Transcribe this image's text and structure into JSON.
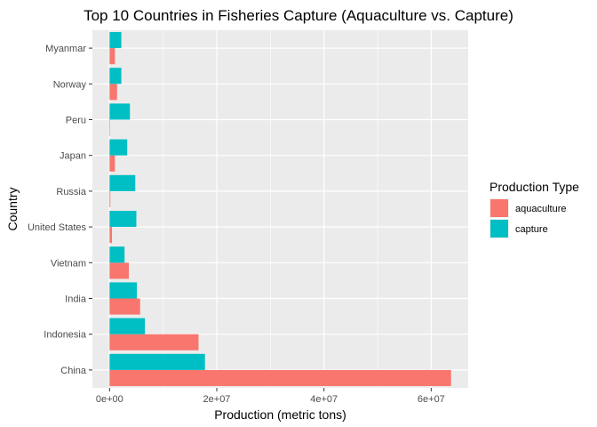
{
  "chart_data": {
    "type": "bar",
    "orientation": "horizontal",
    "title": "Top 10 Countries in Fisheries Capture (Aquaculture vs. Capture)",
    "xlabel": "Production (metric tons)",
    "ylabel": "Country",
    "categories": [
      "China",
      "Indonesia",
      "India",
      "Vietnam",
      "United States",
      "Russia",
      "Japan",
      "Peru",
      "Norway",
      "Myanmar"
    ],
    "series": [
      {
        "name": "aquaculture",
        "color": "#F8766D",
        "values": [
          63700000,
          16600000,
          5700000,
          3600000,
          450000,
          150000,
          1000000,
          100000,
          1400000,
          1000000
        ]
      },
      {
        "name": "capture",
        "color": "#00BFC4",
        "values": [
          17800000,
          6600000,
          5100000,
          2800000,
          5000000,
          4800000,
          3300000,
          3800000,
          2200000,
          2200000
        ]
      }
    ],
    "xlim": [
      -3200000,
      66900000
    ],
    "x_ticks": [
      0,
      20000000,
      40000000,
      60000000
    ],
    "x_tick_labels": [
      "0e+00",
      "2e+07",
      "4e+07",
      "6e+07"
    ],
    "legend": {
      "title": "Production Type",
      "position": "right"
    },
    "grid": true,
    "panel_background": "#EBEBEB"
  }
}
